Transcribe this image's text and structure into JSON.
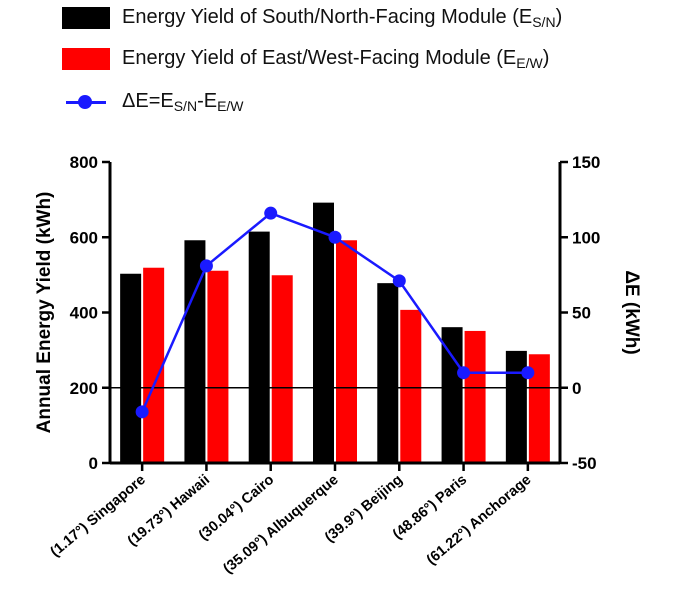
{
  "legend": {
    "sn_main": "Energy Yield of South/North-Facing Module (E",
    "sn_sub": "S/N",
    "sn_end": ")",
    "ew_main": "Energy Yield of East/West-Facing Module (E",
    "ew_sub": "E/W",
    "ew_end": ")",
    "de_a": "ΔE=E",
    "de_sub1": "S/N",
    "de_b": "-E",
    "de_sub2": "E/W"
  },
  "colors": {
    "sn": "#000000",
    "ew": "#ff0000",
    "delta": "#1a1aff"
  },
  "chart_data": {
    "type": "bar",
    "categories": [
      "(1.17°) Singapore",
      "(19.73°) Hawaii",
      "(30.04°) Cairo",
      "(35.09°) Albuquerque",
      "(39.9°) Beijing",
      "(48.86°) Paris",
      "(61.22°) Anchorage"
    ],
    "series": [
      {
        "name": "Energy Yield of South/North-Facing Module (ES/N)",
        "values": [
          503,
          592,
          615,
          692,
          478,
          361,
          298
        ],
        "axis": "left"
      },
      {
        "name": "Energy Yield of East/West-Facing Module (EE/W)",
        "values": [
          519,
          511,
          499,
          592,
          407,
          351,
          289
        ],
        "axis": "left"
      },
      {
        "name": "ΔE=ES/N-EE/W",
        "type": "line",
        "values": [
          -16,
          81,
          116,
          100,
          71,
          10,
          10
        ],
        "axis": "right"
      }
    ],
    "ylabel": "Annual Energy Yield (kWh)",
    "y2label": "ΔE (kWh)",
    "ylim": [
      0,
      800
    ],
    "y2lim": [
      -50,
      150
    ],
    "yticks": [
      0,
      200,
      400,
      600,
      800
    ],
    "y2ticks": [
      -50,
      0,
      50,
      100,
      150
    ],
    "reference_line": 200
  }
}
